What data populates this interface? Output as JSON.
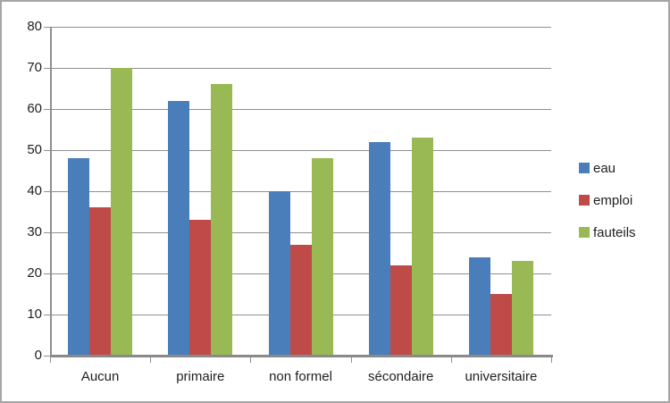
{
  "chart_data": {
    "type": "bar",
    "title": "",
    "xlabel": "",
    "ylabel": "",
    "categories": [
      "Aucun",
      "primaire",
      "non formel",
      "sécondaire",
      "universitaire"
    ],
    "series": [
      {
        "name": "eau",
        "color": "#4A7EBB",
        "values": [
          48,
          62,
          40,
          52,
          24
        ]
      },
      {
        "name": "emploi",
        "color": "#BE4B48",
        "values": [
          36,
          33,
          27,
          22,
          15
        ]
      },
      {
        "name": "fauteils",
        "color": "#98B954",
        "values": [
          70,
          66,
          48,
          53,
          23
        ]
      }
    ],
    "ylim": [
      0,
      80
    ],
    "ytick_step": 10,
    "ytick_labels": [
      "0",
      "10",
      "20",
      "30",
      "40",
      "50",
      "60",
      "70",
      "80"
    ],
    "grid": true,
    "legend_position": "right"
  },
  "colors": {
    "background": "#FFFFFF",
    "border": "#A6A6A6",
    "gridline": "#8F8F8F",
    "axis": "#898989",
    "text": "#1F1F1F"
  }
}
